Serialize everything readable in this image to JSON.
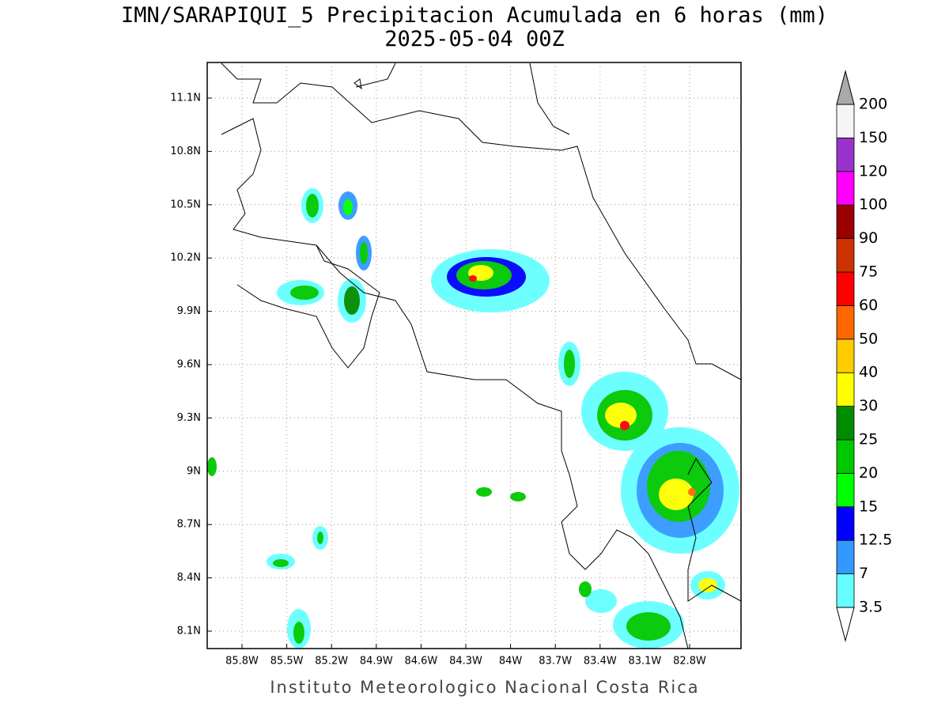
{
  "map": {
    "title": "IMN/SARAPIQUI_5 Precipitacion Acumulada en 6 horas (mm)",
    "subtitle": "2025-05-04 00Z",
    "lat_ticks": [
      "11.1N",
      "10.8N",
      "10.5N",
      "10.2N",
      "9.9N",
      "9.6N",
      "9.3N",
      "9N",
      "8.7N",
      "8.4N",
      "8.1N"
    ],
    "lon_ticks": [
      "85.8W",
      "85.5W",
      "85.2W",
      "84.9W",
      "84.6W",
      "84.3W",
      "84W",
      "83.7W",
      "83.4W",
      "83.1W",
      "82.8W"
    ],
    "footer": "Instituto Meteorologico Nacional Costa Rica"
  },
  "colorbar": {
    "levels": [
      "3.5",
      "7",
      "12.5",
      "15",
      "20",
      "25",
      "30",
      "40",
      "50",
      "60",
      "75",
      "90",
      "100",
      "120",
      "150",
      "200"
    ],
    "colors": [
      "#66ffff",
      "#3399ff",
      "#0000ff",
      "#00ff00",
      "#00c800",
      "#008c00",
      "#ffff00",
      "#ffcc00",
      "#ff6600",
      "#ff0000",
      "#cc3300",
      "#990000",
      "#ff00ff",
      "#9933cc",
      "#f5f5f5"
    ],
    "under_color": "#ffffff",
    "over_color": "#aaaaaa"
  }
}
